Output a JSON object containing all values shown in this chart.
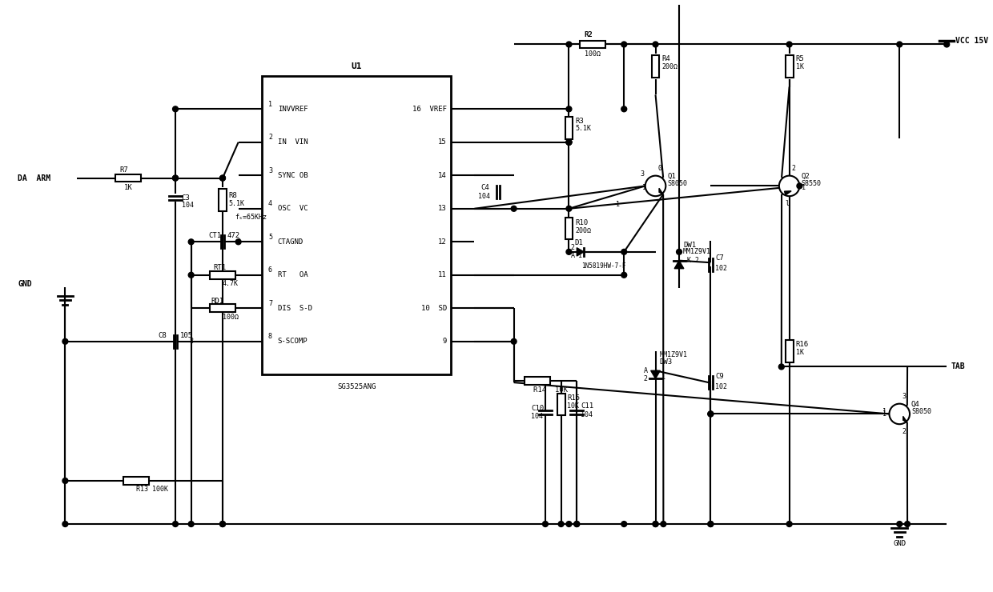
{
  "bg_color": "#ffffff",
  "line_color": "#000000",
  "lw": 1.5,
  "ic": {
    "label": "U1",
    "sublabel": "SG3525ANG",
    "left_pins": [
      "INVVREF",
      "IN  VIN",
      "SYNC OB",
      "OSC  VC",
      "CTAGND",
      "RT   OA",
      "DIS  S-D",
      "S-SCOMP"
    ],
    "right_pins": [
      "16  VREF",
      "15",
      "14",
      "13",
      "12",
      "11",
      "10  SD",
      "9"
    ],
    "left_pin_nums": [
      "1",
      "2",
      "3",
      "4",
      "5",
      "6",
      "7",
      "8"
    ]
  }
}
